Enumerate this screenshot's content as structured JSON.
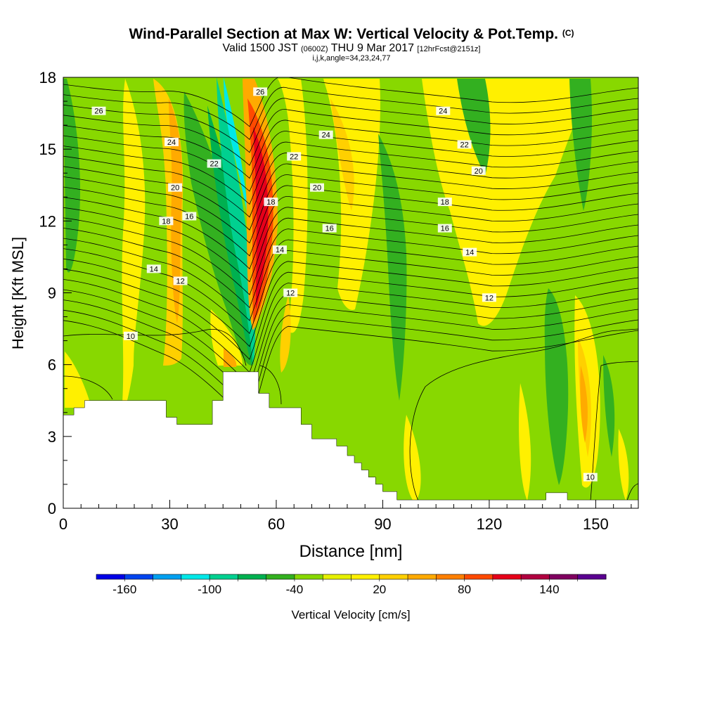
{
  "header": {
    "title": "Wind-Parallel Section at Max W: Vertical Velocity & Pot.Temp.",
    "copyright": "(C)",
    "valid_prefix": "Valid 1500 JST",
    "valid_utc": "(0600Z)",
    "valid_date": "THU 9 Mar 2017",
    "forecast": "[12hrFcst@2151z]",
    "ijk": "i,j,k,angle=34,23,24,77"
  },
  "chart_data": {
    "type": "heatmap",
    "title": "Wind-Parallel Section at Max W: Vertical Velocity & Pot.Temp.",
    "xlabel": "Distance [nm]",
    "ylabel": "Height [Kft MSL]",
    "xlim": [
      0,
      162
    ],
    "ylim": [
      0,
      18
    ],
    "x_ticks": [
      "0",
      "30",
      "60",
      "90",
      "120",
      "150"
    ],
    "x_tick_values": [
      0,
      30,
      60,
      90,
      120,
      150
    ],
    "y_ticks": [
      "0",
      "3",
      "6",
      "9",
      "12",
      "15",
      "18"
    ],
    "y_tick_values": [
      0,
      3,
      6,
      9,
      12,
      15,
      18
    ],
    "colorbar": {
      "label": "Vertical Velocity [cm/s]",
      "tick_labels": [
        "-160",
        "-100",
        "-40",
        "20",
        "80",
        "140"
      ],
      "tick_values": [
        -160,
        -100,
        -40,
        20,
        80,
        140
      ],
      "min": -180,
      "max": 180,
      "colors": [
        "#0000e6",
        "#0044ee",
        "#00a0f0",
        "#00e8e8",
        "#00d090",
        "#00b050",
        "#33b020",
        "#88d800",
        "#e6f000",
        "#fff000",
        "#ffd000",
        "#ffaa00",
        "#ff8000",
        "#ff4a00",
        "#e6001a",
        "#b00040",
        "#800060",
        "#5a0090"
      ]
    },
    "contour_labels": [
      {
        "text": "26",
        "x": 10,
        "y": 16.6
      },
      {
        "text": "24",
        "x": 30.5,
        "y": 15.3
      },
      {
        "text": "22",
        "x": 42.5,
        "y": 14.4
      },
      {
        "text": "20",
        "x": 31.5,
        "y": 13.4
      },
      {
        "text": "18",
        "x": 29,
        "y": 12.0
      },
      {
        "text": "16",
        "x": 35.5,
        "y": 12.2
      },
      {
        "text": "14",
        "x": 25.5,
        "y": 10.0
      },
      {
        "text": "12",
        "x": 33,
        "y": 9.5
      },
      {
        "text": "10",
        "x": 19,
        "y": 7.2
      },
      {
        "text": "26",
        "x": 55.5,
        "y": 17.4
      },
      {
        "text": "24",
        "x": 74,
        "y": 15.6
      },
      {
        "text": "22",
        "x": 65,
        "y": 14.7
      },
      {
        "text": "20",
        "x": 71.5,
        "y": 13.4
      },
      {
        "text": "18",
        "x": 58.5,
        "y": 12.8
      },
      {
        "text": "16",
        "x": 75,
        "y": 11.7
      },
      {
        "text": "14",
        "x": 61,
        "y": 10.8
      },
      {
        "text": "12",
        "x": 64,
        "y": 9.0
      },
      {
        "text": "24",
        "x": 107,
        "y": 16.6
      },
      {
        "text": "22",
        "x": 113,
        "y": 15.2
      },
      {
        "text": "20",
        "x": 117,
        "y": 14.1
      },
      {
        "text": "18",
        "x": 107.5,
        "y": 12.8
      },
      {
        "text": "16",
        "x": 107.5,
        "y": 11.7
      },
      {
        "text": "14",
        "x": 114.5,
        "y": 10.7
      },
      {
        "text": "12",
        "x": 120,
        "y": 8.8
      },
      {
        "text": "10",
        "x": 148.5,
        "y": 1.3
      }
    ],
    "terrain": [
      [
        0,
        3.9
      ],
      [
        3,
        3.9
      ],
      [
        3,
        4.2
      ],
      [
        6,
        4.2
      ],
      [
        6,
        4.5
      ],
      [
        29,
        4.5
      ],
      [
        29,
        3.8
      ],
      [
        32,
        3.8
      ],
      [
        32,
        3.5
      ],
      [
        42,
        3.5
      ],
      [
        42,
        4.5
      ],
      [
        45,
        4.5
      ],
      [
        45,
        5.7
      ],
      [
        55,
        5.7
      ],
      [
        55,
        4.8
      ],
      [
        58,
        4.8
      ],
      [
        58,
        4.2
      ],
      [
        67,
        4.2
      ],
      [
        67,
        3.5
      ],
      [
        70,
        3.5
      ],
      [
        70,
        2.9
      ],
      [
        77,
        2.9
      ],
      [
        77,
        2.6
      ],
      [
        80,
        2.6
      ],
      [
        80,
        2.2
      ],
      [
        82,
        2.2
      ],
      [
        82,
        1.9
      ],
      [
        84,
        1.9
      ],
      [
        84,
        1.6
      ],
      [
        86,
        1.6
      ],
      [
        86,
        1.3
      ],
      [
        88,
        1.3
      ],
      [
        88,
        1.0
      ],
      [
        90,
        1.0
      ],
      [
        90,
        0.7
      ],
      [
        94,
        0.7
      ],
      [
        94,
        0.35
      ],
      [
        136,
        0.35
      ],
      [
        136,
        0.65
      ],
      [
        142,
        0.65
      ],
      [
        142,
        0.35
      ],
      [
        162,
        0.35
      ]
    ]
  }
}
